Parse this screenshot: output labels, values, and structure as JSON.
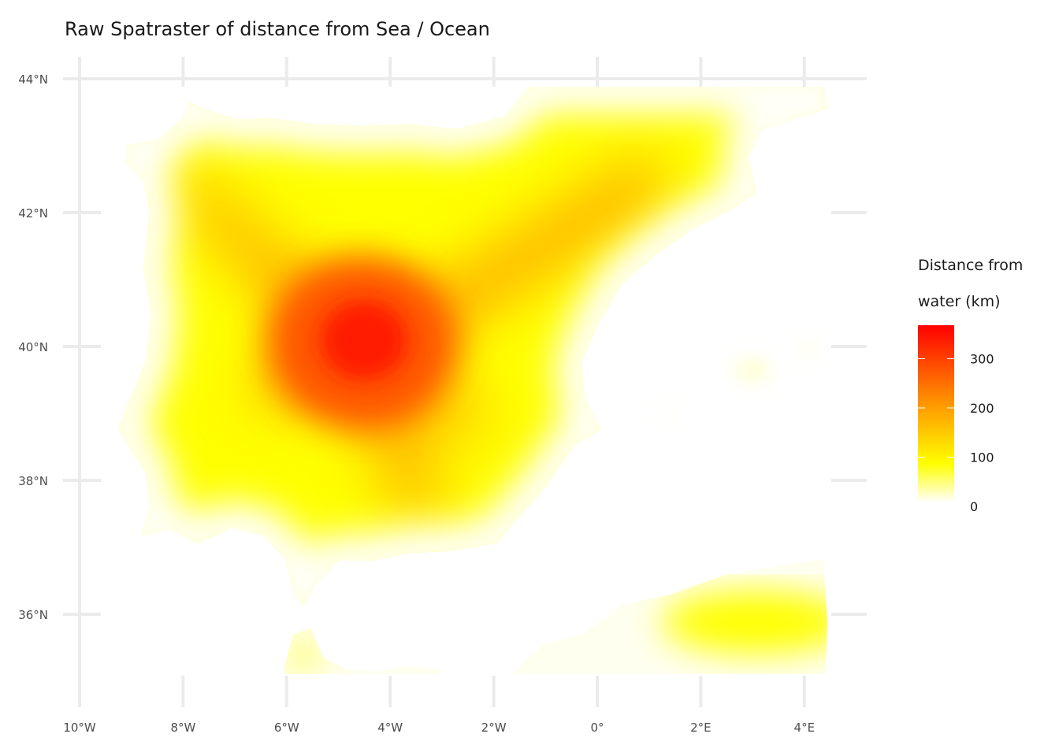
{
  "title": "Raw Spatraster of distance from Sea / Ocean",
  "colors": {
    "background": "#ffffff",
    "gridline": "#ebebeb",
    "zero_value": "#fffff8",
    "low": "#ffff00",
    "mid": "#ff9900",
    "high": "#ff0000"
  },
  "map": {
    "type": "raster",
    "region": "Iberian Peninsula and North Africa coast",
    "x_axis_ticks": [
      {
        "value": -10,
        "label": "10°W"
      },
      {
        "value": -8,
        "label": "8°W"
      },
      {
        "value": -6,
        "label": "6°W"
      },
      {
        "value": -4,
        "label": "4°W"
      },
      {
        "value": -2,
        "label": "2°W"
      },
      {
        "value": 0,
        "label": "0°"
      },
      {
        "value": 2,
        "label": "2°E"
      },
      {
        "value": 4,
        "label": "4°E"
      }
    ],
    "y_axis_ticks": [
      {
        "value": 44,
        "label": "44°N"
      },
      {
        "value": 42,
        "label": "42°N"
      },
      {
        "value": 40,
        "label": "40°N"
      },
      {
        "value": 38,
        "label": "38°N"
      },
      {
        "value": 36,
        "label": "36°N"
      }
    ],
    "xlim": [
      -10,
      4.5
    ],
    "ylim": [
      35.0,
      44.0
    ],
    "grid": true,
    "value_range": [
      0,
      360
    ],
    "peak_value_location": {
      "lon": -4.5,
      "lat": 40.0
    }
  },
  "legend": {
    "title_line1": "Distance from",
    "title_line2": "water (km)",
    "ticks": [
      {
        "value": 300,
        "label": "300"
      },
      {
        "value": 200,
        "label": "200"
      },
      {
        "value": 100,
        "label": "100"
      },
      {
        "value": 0,
        "label": "0"
      }
    ],
    "placement": "right"
  }
}
